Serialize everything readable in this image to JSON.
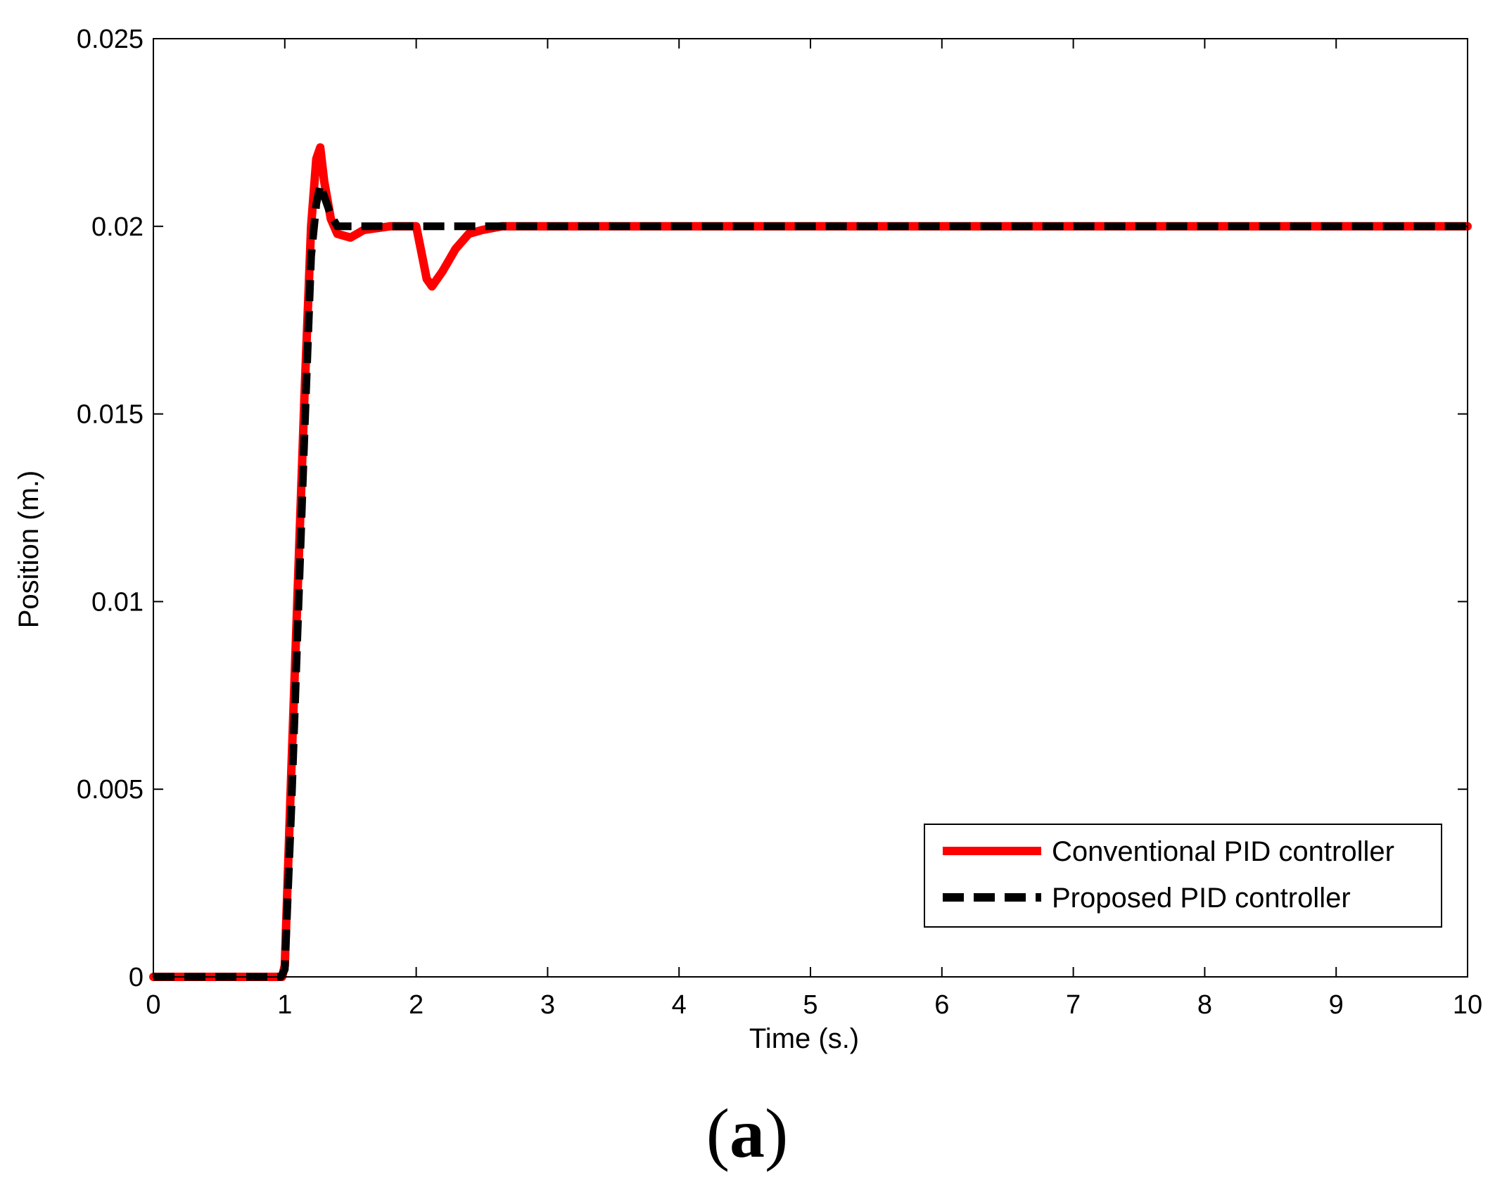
{
  "chart_data": {
    "type": "line",
    "xlabel": "Time (s.)",
    "ylabel": "Position (m.)",
    "xlim": [
      0,
      10
    ],
    "ylim": [
      0,
      0.025
    ],
    "x_ticks": [
      "0",
      "1",
      "2",
      "3",
      "4",
      "5",
      "6",
      "7",
      "8",
      "9",
      "10"
    ],
    "y_ticks": [
      "0",
      "0.005",
      "0.01",
      "0.015",
      "0.02",
      "0.025"
    ],
    "grid": false,
    "legend_position": "bottom-right",
    "series": [
      {
        "name": "Conventional PID controller",
        "color": "#ff0000",
        "style": "solid",
        "x": [
          0,
          0.98,
          1.0,
          1.05,
          1.1,
          1.15,
          1.2,
          1.24,
          1.27,
          1.3,
          1.35,
          1.4,
          1.5,
          1.6,
          1.8,
          2.0,
          2.04,
          2.08,
          2.12,
          2.2,
          2.3,
          2.4,
          2.5,
          2.65,
          3.0,
          10.0
        ],
        "y": [
          0,
          0,
          0.0003,
          0.0055,
          0.0105,
          0.0155,
          0.02,
          0.0218,
          0.0221,
          0.0212,
          0.0202,
          0.0198,
          0.0197,
          0.0199,
          0.02,
          0.02,
          0.0193,
          0.0186,
          0.0184,
          0.0188,
          0.0194,
          0.0198,
          0.0199,
          0.02,
          0.02,
          0.02
        ]
      },
      {
        "name": "Proposed PID controller",
        "color": "#000000",
        "style": "dashed",
        "x": [
          0,
          0.97,
          1.0,
          1.05,
          1.1,
          1.15,
          1.2,
          1.24,
          1.27,
          1.3,
          1.35,
          1.4,
          1.5,
          10.0
        ],
        "y": [
          0,
          0,
          0.0002,
          0.0045,
          0.0095,
          0.0145,
          0.0192,
          0.0206,
          0.0211,
          0.0208,
          0.0203,
          0.02,
          0.02,
          0.02
        ]
      }
    ],
    "legend": [
      "Conventional PID controller",
      "Proposed PID controller"
    ],
    "caption_open": "(",
    "caption_letter": "a",
    "caption_close": ")"
  }
}
